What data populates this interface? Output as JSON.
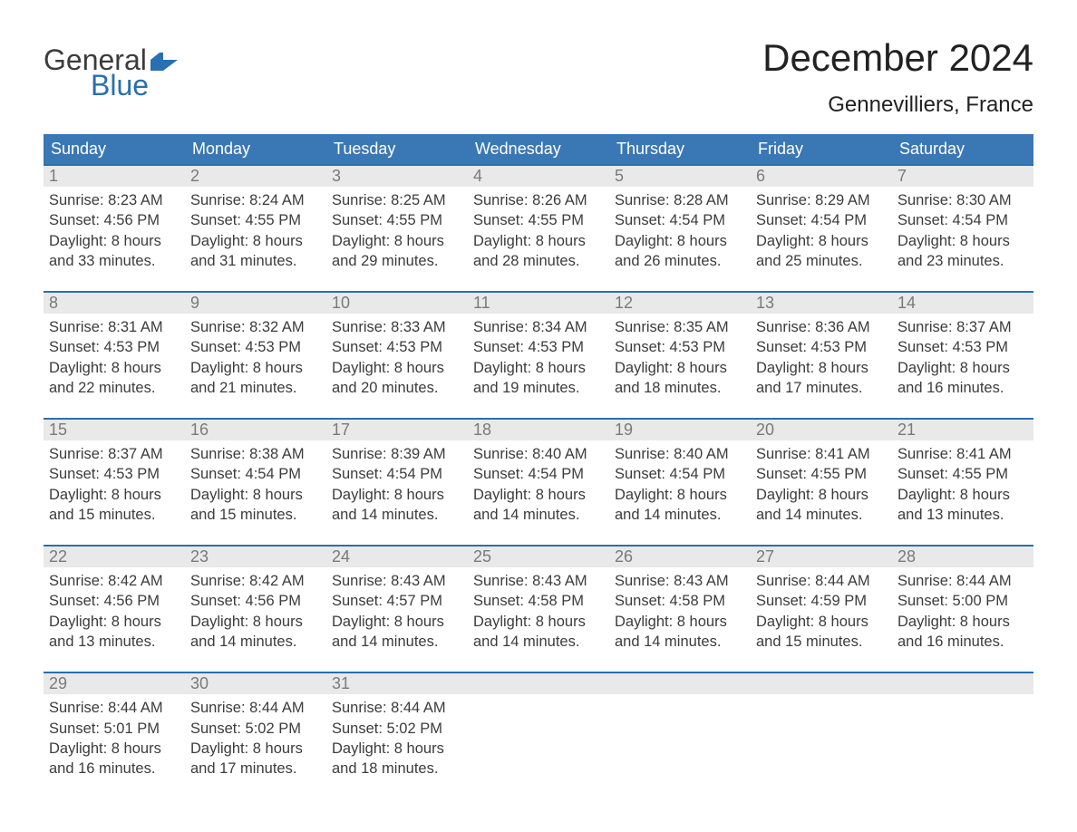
{
  "logo": {
    "line1": "General",
    "line2": "Blue"
  },
  "title": "December 2024",
  "location": "Gennevilliers, France",
  "colors": {
    "header_blue": "#3a78b5",
    "accent_blue": "#2a6fb0",
    "daynum_bg": "#e9e9e9",
    "daynum_color": "#7a7a7a",
    "text_color": "#3c3c3c",
    "title_color": "#222222",
    "logo_general": "#3c3c3c",
    "logo_blue": "#2a6fb0",
    "background": "#ffffff"
  },
  "weekdays": [
    "Sunday",
    "Monday",
    "Tuesday",
    "Wednesday",
    "Thursday",
    "Friday",
    "Saturday"
  ],
  "weeks": [
    [
      {
        "day": "1",
        "sunrise": "Sunrise: 8:23 AM",
        "sunset": "Sunset: 4:56 PM",
        "d1": "Daylight: 8 hours",
        "d2": "and 33 minutes."
      },
      {
        "day": "2",
        "sunrise": "Sunrise: 8:24 AM",
        "sunset": "Sunset: 4:55 PM",
        "d1": "Daylight: 8 hours",
        "d2": "and 31 minutes."
      },
      {
        "day": "3",
        "sunrise": "Sunrise: 8:25 AM",
        "sunset": "Sunset: 4:55 PM",
        "d1": "Daylight: 8 hours",
        "d2": "and 29 minutes."
      },
      {
        "day": "4",
        "sunrise": "Sunrise: 8:26 AM",
        "sunset": "Sunset: 4:55 PM",
        "d1": "Daylight: 8 hours",
        "d2": "and 28 minutes."
      },
      {
        "day": "5",
        "sunrise": "Sunrise: 8:28 AM",
        "sunset": "Sunset: 4:54 PM",
        "d1": "Daylight: 8 hours",
        "d2": "and 26 minutes."
      },
      {
        "day": "6",
        "sunrise": "Sunrise: 8:29 AM",
        "sunset": "Sunset: 4:54 PM",
        "d1": "Daylight: 8 hours",
        "d2": "and 25 minutes."
      },
      {
        "day": "7",
        "sunrise": "Sunrise: 8:30 AM",
        "sunset": "Sunset: 4:54 PM",
        "d1": "Daylight: 8 hours",
        "d2": "and 23 minutes."
      }
    ],
    [
      {
        "day": "8",
        "sunrise": "Sunrise: 8:31 AM",
        "sunset": "Sunset: 4:53 PM",
        "d1": "Daylight: 8 hours",
        "d2": "and 22 minutes."
      },
      {
        "day": "9",
        "sunrise": "Sunrise: 8:32 AM",
        "sunset": "Sunset: 4:53 PM",
        "d1": "Daylight: 8 hours",
        "d2": "and 21 minutes."
      },
      {
        "day": "10",
        "sunrise": "Sunrise: 8:33 AM",
        "sunset": "Sunset: 4:53 PM",
        "d1": "Daylight: 8 hours",
        "d2": "and 20 minutes."
      },
      {
        "day": "11",
        "sunrise": "Sunrise: 8:34 AM",
        "sunset": "Sunset: 4:53 PM",
        "d1": "Daylight: 8 hours",
        "d2": "and 19 minutes."
      },
      {
        "day": "12",
        "sunrise": "Sunrise: 8:35 AM",
        "sunset": "Sunset: 4:53 PM",
        "d1": "Daylight: 8 hours",
        "d2": "and 18 minutes."
      },
      {
        "day": "13",
        "sunrise": "Sunrise: 8:36 AM",
        "sunset": "Sunset: 4:53 PM",
        "d1": "Daylight: 8 hours",
        "d2": "and 17 minutes."
      },
      {
        "day": "14",
        "sunrise": "Sunrise: 8:37 AM",
        "sunset": "Sunset: 4:53 PM",
        "d1": "Daylight: 8 hours",
        "d2": "and 16 minutes."
      }
    ],
    [
      {
        "day": "15",
        "sunrise": "Sunrise: 8:37 AM",
        "sunset": "Sunset: 4:53 PM",
        "d1": "Daylight: 8 hours",
        "d2": "and 15 minutes."
      },
      {
        "day": "16",
        "sunrise": "Sunrise: 8:38 AM",
        "sunset": "Sunset: 4:54 PM",
        "d1": "Daylight: 8 hours",
        "d2": "and 15 minutes."
      },
      {
        "day": "17",
        "sunrise": "Sunrise: 8:39 AM",
        "sunset": "Sunset: 4:54 PM",
        "d1": "Daylight: 8 hours",
        "d2": "and 14 minutes."
      },
      {
        "day": "18",
        "sunrise": "Sunrise: 8:40 AM",
        "sunset": "Sunset: 4:54 PM",
        "d1": "Daylight: 8 hours",
        "d2": "and 14 minutes."
      },
      {
        "day": "19",
        "sunrise": "Sunrise: 8:40 AM",
        "sunset": "Sunset: 4:54 PM",
        "d1": "Daylight: 8 hours",
        "d2": "and 14 minutes."
      },
      {
        "day": "20",
        "sunrise": "Sunrise: 8:41 AM",
        "sunset": "Sunset: 4:55 PM",
        "d1": "Daylight: 8 hours",
        "d2": "and 14 minutes."
      },
      {
        "day": "21",
        "sunrise": "Sunrise: 8:41 AM",
        "sunset": "Sunset: 4:55 PM",
        "d1": "Daylight: 8 hours",
        "d2": "and 13 minutes."
      }
    ],
    [
      {
        "day": "22",
        "sunrise": "Sunrise: 8:42 AM",
        "sunset": "Sunset: 4:56 PM",
        "d1": "Daylight: 8 hours",
        "d2": "and 13 minutes."
      },
      {
        "day": "23",
        "sunrise": "Sunrise: 8:42 AM",
        "sunset": "Sunset: 4:56 PM",
        "d1": "Daylight: 8 hours",
        "d2": "and 14 minutes."
      },
      {
        "day": "24",
        "sunrise": "Sunrise: 8:43 AM",
        "sunset": "Sunset: 4:57 PM",
        "d1": "Daylight: 8 hours",
        "d2": "and 14 minutes."
      },
      {
        "day": "25",
        "sunrise": "Sunrise: 8:43 AM",
        "sunset": "Sunset: 4:58 PM",
        "d1": "Daylight: 8 hours",
        "d2": "and 14 minutes."
      },
      {
        "day": "26",
        "sunrise": "Sunrise: 8:43 AM",
        "sunset": "Sunset: 4:58 PM",
        "d1": "Daylight: 8 hours",
        "d2": "and 14 minutes."
      },
      {
        "day": "27",
        "sunrise": "Sunrise: 8:44 AM",
        "sunset": "Sunset: 4:59 PM",
        "d1": "Daylight: 8 hours",
        "d2": "and 15 minutes."
      },
      {
        "day": "28",
        "sunrise": "Sunrise: 8:44 AM",
        "sunset": "Sunset: 5:00 PM",
        "d1": "Daylight: 8 hours",
        "d2": "and 16 minutes."
      }
    ],
    [
      {
        "day": "29",
        "sunrise": "Sunrise: 8:44 AM",
        "sunset": "Sunset: 5:01 PM",
        "d1": "Daylight: 8 hours",
        "d2": "and 16 minutes."
      },
      {
        "day": "30",
        "sunrise": "Sunrise: 8:44 AM",
        "sunset": "Sunset: 5:02 PM",
        "d1": "Daylight: 8 hours",
        "d2": "and 17 minutes."
      },
      {
        "day": "31",
        "sunrise": "Sunrise: 8:44 AM",
        "sunset": "Sunset: 5:02 PM",
        "d1": "Daylight: 8 hours",
        "d2": "and 18 minutes."
      },
      null,
      null,
      null,
      null
    ]
  ]
}
